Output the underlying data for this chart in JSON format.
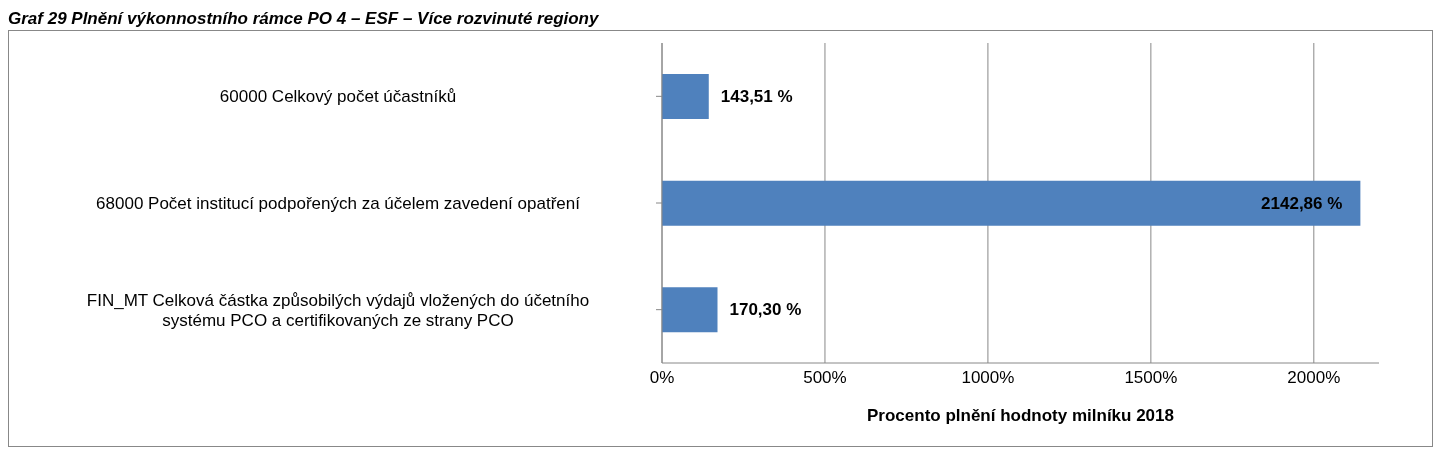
{
  "chart_data": {
    "type": "bar",
    "orientation": "horizontal",
    "title": "Graf 29 Plnění výkonnostního rámce PO 4 – ESF – Více rozvinuté regiony",
    "categories": [
      "60000 Celkový počet účastníků",
      "68000 Počet institucí podpořených za účelem zavedení opatření",
      "FIN_MT Celková částka způsobilých výdajů vložených do účetního systému PCO a certifikovaných ze strany PCO"
    ],
    "values": [
      143.51,
      2142.86,
      170.3
    ],
    "value_labels": [
      "143,51 %",
      "2142,86 %",
      "170,30 %"
    ],
    "color": "#4f81bd",
    "xlabel": "Procento plnění hodnoty  milníku 2018",
    "xlim": [
      0,
      2200
    ],
    "xticks": [
      {
        "value": 0,
        "label": "0%"
      },
      {
        "value": 500,
        "label": "500%"
      },
      {
        "value": 1000,
        "label": "1000%"
      },
      {
        "value": 1500,
        "label": "1500%"
      },
      {
        "value": 2000,
        "label": "2000%"
      }
    ],
    "grid": "x",
    "legend": false
  }
}
